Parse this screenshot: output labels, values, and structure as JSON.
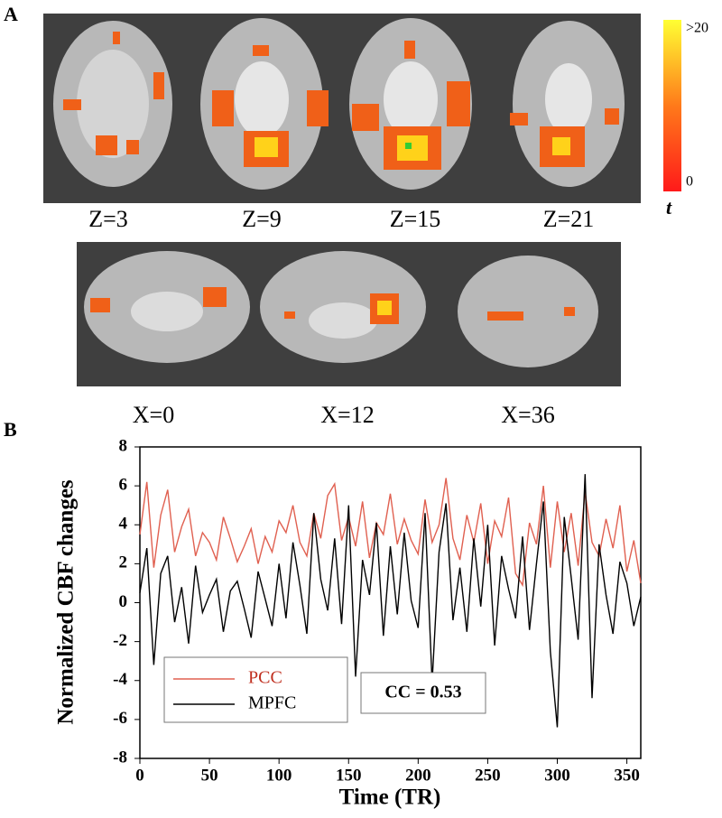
{
  "figure": {
    "panel_a": "A",
    "panel_b": "B",
    "axial_labels": [
      "Z=3",
      "Z=9",
      "Z=15",
      "Z=21"
    ],
    "sagittal_labels": [
      "X=0",
      "X=12",
      "X=36"
    ],
    "colorbar": {
      "max_label": ">20",
      "min_label": "0",
      "title": "t"
    }
  },
  "chart_data": {
    "type": "line",
    "xlabel": "Time (TR)",
    "ylabel": "Normalized CBF changes",
    "annotation": "CC = 0.53",
    "x": [
      0,
      5,
      10,
      15,
      20,
      25,
      30,
      35,
      40,
      45,
      50,
      55,
      60,
      65,
      70,
      75,
      80,
      85,
      90,
      95,
      100,
      105,
      110,
      115,
      120,
      125,
      130,
      135,
      140,
      145,
      150,
      155,
      160,
      165,
      170,
      175,
      180,
      185,
      190,
      195,
      200,
      205,
      210,
      215,
      220,
      225,
      230,
      235,
      240,
      245,
      250,
      255,
      260,
      265,
      270,
      275,
      280,
      285,
      290,
      295,
      300,
      305,
      310,
      315,
      320,
      325,
      330,
      335,
      340,
      345,
      350,
      355,
      360
    ],
    "series": [
      {
        "name": "PCC",
        "color": "#e06050",
        "values": [
          3.5,
          6.2,
          1.8,
          4.5,
          5.8,
          2.6,
          3.9,
          4.8,
          2.4,
          3.6,
          3.1,
          2.2,
          4.4,
          3.3,
          2.1,
          2.9,
          3.8,
          2.0,
          3.4,
          2.6,
          4.2,
          3.6,
          5.0,
          3.1,
          2.4,
          4.6,
          3.3,
          5.5,
          6.1,
          3.2,
          4.4,
          2.9,
          5.2,
          2.3,
          4.1,
          3.5,
          5.6,
          3.0,
          4.3,
          3.2,
          2.5,
          5.3,
          3.1,
          4.0,
          6.4,
          3.3,
          2.2,
          4.5,
          3.1,
          5.1,
          2.0,
          4.2,
          3.4,
          5.4,
          1.5,
          0.9,
          4.1,
          3.0,
          6.0,
          1.8,
          5.2,
          2.6,
          4.6,
          1.9,
          5.7,
          3.1,
          2.4,
          4.3,
          2.8,
          5.0,
          1.6,
          3.2,
          1.0
        ]
      },
      {
        "name": "MPFC",
        "color": "#000000",
        "values": [
          0.5,
          2.8,
          -3.2,
          1.5,
          2.4,
          -1.0,
          0.8,
          -2.1,
          1.9,
          -0.5,
          0.4,
          1.2,
          -1.5,
          0.6,
          1.1,
          -0.3,
          -1.8,
          1.6,
          0.2,
          -1.2,
          2.0,
          -0.8,
          3.1,
          0.9,
          -1.6,
          4.6,
          1.2,
          -0.4,
          3.3,
          -1.1,
          5.0,
          -3.8,
          2.2,
          0.4,
          4.1,
          -1.7,
          2.9,
          -0.6,
          3.6,
          0.1,
          -1.3,
          4.6,
          -4.1,
          2.6,
          5.1,
          -0.9,
          1.8,
          -1.5,
          3.3,
          -0.2,
          4.0,
          -2.2,
          2.4,
          0.7,
          -0.8,
          3.4,
          -1.4,
          2.0,
          5.2,
          -2.5,
          -6.4,
          4.4,
          1.3,
          -1.9,
          6.6,
          -4.9,
          3.0,
          0.4,
          -1.6,
          2.1,
          1.0,
          -1.2,
          0.3
        ]
      }
    ],
    "xlim": [
      0,
      360
    ],
    "xticks": [
      0,
      50,
      100,
      150,
      200,
      250,
      300,
      350
    ],
    "ylim": [
      -8,
      8
    ],
    "yticks": [
      -8,
      -6,
      -4,
      -2,
      0,
      2,
      4,
      6,
      8
    ]
  }
}
